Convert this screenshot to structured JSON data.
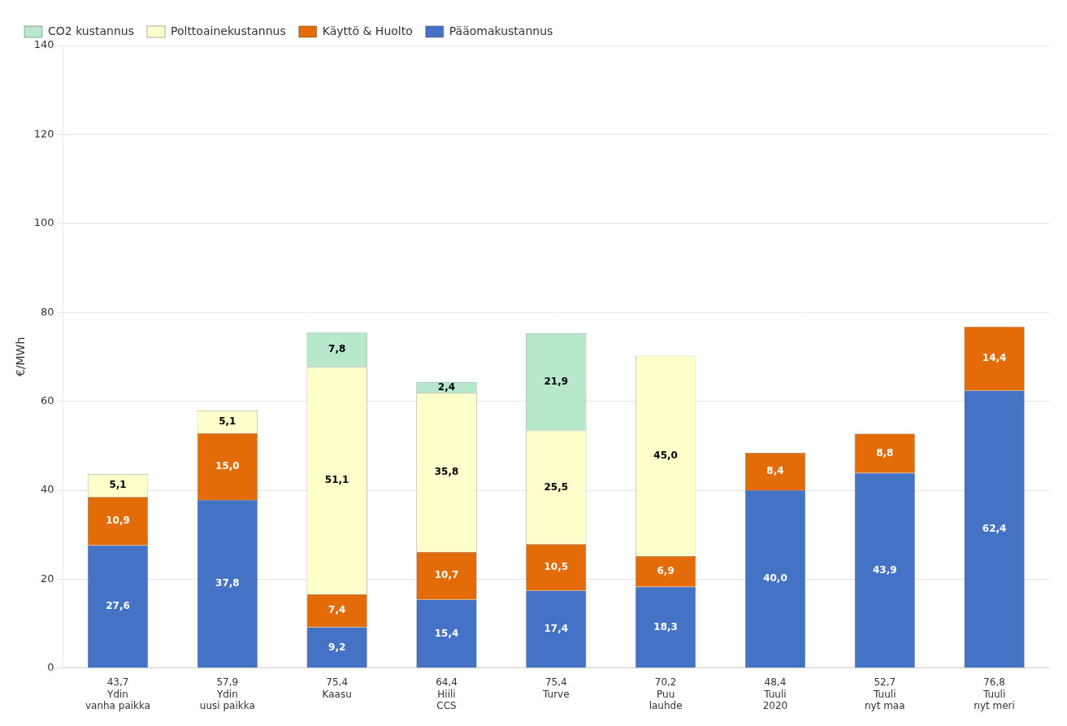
{
  "chart_data": {
    "type": "bar",
    "stacked": true,
    "categories": [
      "43,7\nYdin\nvanha paikka",
      "57,9\nYdin\nuusi paikka",
      "75,4\nKaasu",
      "64,4\nHiili\nCCS",
      "75,4\nTurve",
      "70,2\nPuu\nlauhde",
      "48,4\nTuuli\n2020",
      "52,7\nTuuli\nnyt maa",
      "76,8\nTuuli\nnyt meri"
    ],
    "series": [
      {
        "name": "Pääomakustannus",
        "color": "#4472C4",
        "values": [
          27.6,
          37.8,
          9.2,
          15.4,
          17.4,
          18.3,
          40.0,
          43.9,
          62.4
        ],
        "value_labels": [
          "27,6",
          "37,8",
          "9,2",
          "15,4",
          "17,4",
          "18,3",
          "40,0",
          "43,9",
          "62,4"
        ]
      },
      {
        "name": "Käyttö & Huolto",
        "color": "#E36C09",
        "values": [
          10.9,
          15.0,
          7.4,
          10.7,
          10.5,
          6.9,
          8.4,
          8.8,
          14.4
        ],
        "value_labels": [
          "10,9",
          "15,0",
          "7,4",
          "10,7",
          "10,5",
          "6,9",
          "8,4",
          "8,8",
          "14,4"
        ]
      },
      {
        "name": "Polttoainekustannus",
        "color": "#FFFFCC",
        "values": [
          5.1,
          5.1,
          51.1,
          35.8,
          25.5,
          45.0,
          0.0,
          0.0,
          0.0
        ],
        "value_labels": [
          "5,1",
          "5,1",
          "51,1",
          "35,8",
          "25,5",
          "45,0",
          null,
          null,
          null
        ]
      },
      {
        "name": "CO2 kustannus",
        "color": "#B8E8CC",
        "values": [
          0.0,
          0.0,
          7.8,
          2.4,
          21.9,
          0.0,
          0.0,
          0.0,
          0.0
        ],
        "value_labels": [
          null,
          null,
          "7,8",
          "2,4",
          "21,9",
          null,
          null,
          null,
          null
        ]
      }
    ],
    "ylabel": "€/MWh",
    "ylim": [
      0,
      140
    ],
    "yticks": [
      0,
      20,
      40,
      60,
      80,
      100,
      120,
      140
    ],
    "grid": true,
    "legend": "upper left",
    "data_labels": true
  }
}
